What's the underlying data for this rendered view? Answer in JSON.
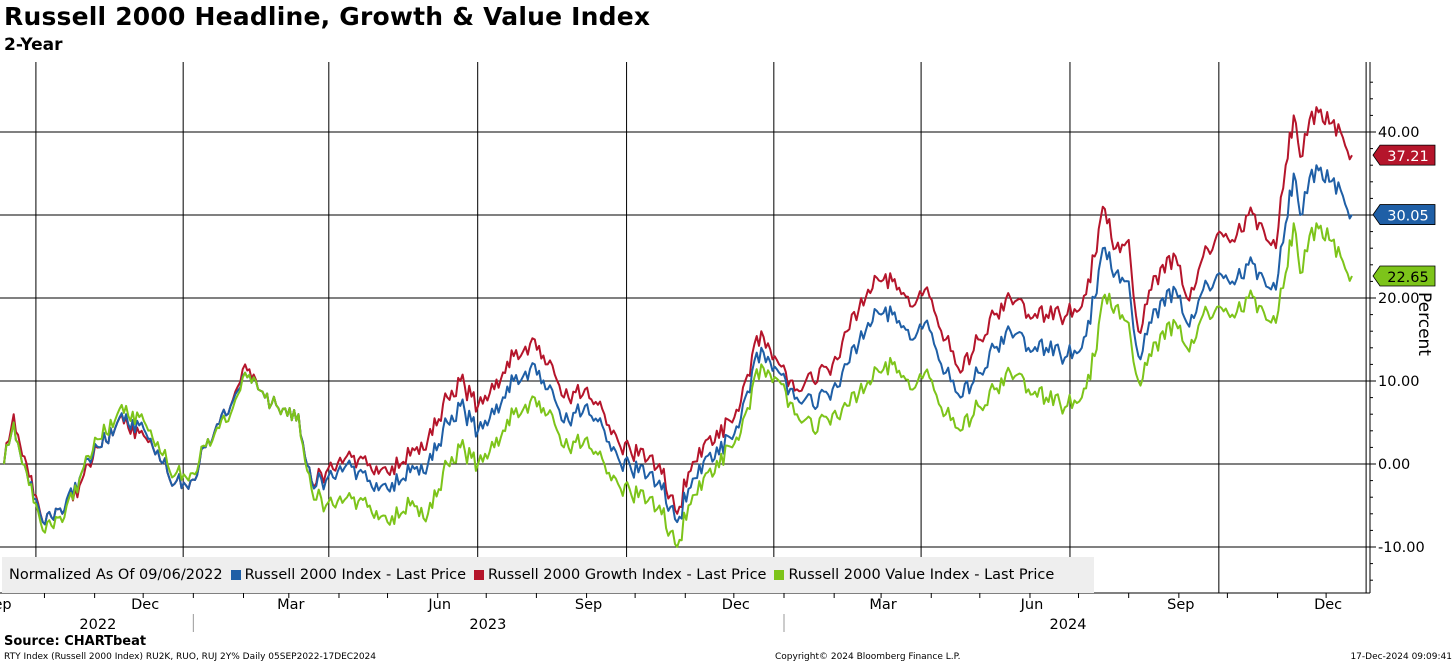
{
  "header": {
    "title": "Russell 2000 Headline, Growth & Value Index",
    "subtitle": "2-Year"
  },
  "legend": {
    "note": "Normalized As Of 09/06/2022"
  },
  "source": "Source: CHARTbeat",
  "footer": {
    "left": "RTY Index (Russell 2000 Index) RU2K, RUO, RUJ 2Y%  Daily 05SEP2022-17DEC2024",
    "center": "Copyright© 2024 Bloomberg Finance L.P.",
    "right": "17-Dec-2024 09:09:41"
  },
  "chart_data": {
    "type": "line",
    "title": "Russell 2000 Headline, Growth & Value Index",
    "subtitle": "2-Year",
    "ylabel": "Percent",
    "ylim": [
      -15,
      47
    ],
    "yticks": [
      -10,
      0,
      10,
      20,
      30,
      40
    ],
    "ytick_labels": [
      "-10.00",
      "0.00",
      "10.00",
      "20.00",
      "30.00",
      "40.00"
    ],
    "xlim": [
      "2022-09-06",
      "2024-12-17"
    ],
    "month_ticks": [
      {
        "date": "2022-09-01",
        "label": "Sep"
      },
      {
        "date": "2022-12-01",
        "label": "Dec"
      },
      {
        "date": "2023-03-01",
        "label": "Mar"
      },
      {
        "date": "2023-06-01",
        "label": "Jun"
      },
      {
        "date": "2023-09-01",
        "label": "Sep"
      },
      {
        "date": "2023-12-01",
        "label": "Dec"
      },
      {
        "date": "2024-03-01",
        "label": "Mar"
      },
      {
        "date": "2024-06-01",
        "label": "Jun"
      },
      {
        "date": "2024-09-01",
        "label": "Sep"
      },
      {
        "date": "2024-12-01",
        "label": "Dec"
      }
    ],
    "year_labels": [
      {
        "label": "2022",
        "from": "2022-09-06",
        "to": "2022-12-31"
      },
      {
        "label": "2023",
        "from": "2023-01-01",
        "to": "2023-12-31"
      },
      {
        "label": "2024",
        "from": "2024-01-01",
        "to": "2024-12-17"
      }
    ],
    "grid": true,
    "legend_position": "bottom-left",
    "series": [
      {
        "name": "Russell 2000 Growth Index - Last Price",
        "color": "#b5152b",
        "last_value_label": "37.21",
        "points": [
          [
            "2022-09-06",
            0
          ],
          [
            "2022-09-12",
            6
          ],
          [
            "2022-09-20",
            0
          ],
          [
            "2022-09-30",
            -7
          ],
          [
            "2022-10-12",
            -6
          ],
          [
            "2022-10-24",
            -2
          ],
          [
            "2022-11-04",
            2
          ],
          [
            "2022-11-15",
            5
          ],
          [
            "2022-11-30",
            4
          ],
          [
            "2022-12-07",
            2
          ],
          [
            "2022-12-16",
            -1
          ],
          [
            "2022-12-29",
            -3
          ],
          [
            "2023-01-10",
            3
          ],
          [
            "2023-01-24",
            7
          ],
          [
            "2023-02-02",
            12
          ],
          [
            "2023-02-10",
            9
          ],
          [
            "2023-02-24",
            6
          ],
          [
            "2023-03-07",
            6
          ],
          [
            "2023-03-15",
            -2
          ],
          [
            "2023-03-24",
            -1
          ],
          [
            "2023-04-06",
            1
          ],
          [
            "2023-04-20",
            0
          ],
          [
            "2023-05-01",
            -1
          ],
          [
            "2023-05-15",
            1
          ],
          [
            "2023-05-26",
            3
          ],
          [
            "2023-06-07",
            8
          ],
          [
            "2023-06-15",
            10
          ],
          [
            "2023-06-26",
            7
          ],
          [
            "2023-07-06",
            9
          ],
          [
            "2023-07-18",
            13
          ],
          [
            "2023-07-31",
            15
          ],
          [
            "2023-08-08",
            12
          ],
          [
            "2023-08-18",
            8
          ],
          [
            "2023-08-31",
            9
          ],
          [
            "2023-09-12",
            6
          ],
          [
            "2023-09-22",
            2
          ],
          [
            "2023-10-03",
            1
          ],
          [
            "2023-10-16",
            0
          ],
          [
            "2023-10-27",
            -6
          ],
          [
            "2023-11-03",
            -1
          ],
          [
            "2023-11-15",
            3
          ],
          [
            "2023-11-30",
            5
          ],
          [
            "2023-12-08",
            10
          ],
          [
            "2023-12-18",
            16
          ],
          [
            "2023-12-29",
            12
          ],
          [
            "2024-01-09",
            9
          ],
          [
            "2024-01-19",
            10
          ],
          [
            "2024-01-31",
            12
          ],
          [
            "2024-02-09",
            16
          ],
          [
            "2024-02-22",
            21
          ],
          [
            "2024-03-01",
            22
          ],
          [
            "2024-03-08",
            22
          ],
          [
            "2024-03-19",
            19
          ],
          [
            "2024-03-28",
            21
          ],
          [
            "2024-04-10",
            15
          ],
          [
            "2024-04-19",
            11
          ],
          [
            "2024-04-30",
            15
          ],
          [
            "2024-05-10",
            18
          ],
          [
            "2024-05-20",
            20
          ],
          [
            "2024-05-31",
            18
          ],
          [
            "2024-06-11",
            18
          ],
          [
            "2024-06-24",
            18
          ],
          [
            "2024-07-03",
            19
          ],
          [
            "2024-07-11",
            25
          ],
          [
            "2024-07-16",
            31
          ],
          [
            "2024-07-24",
            26
          ],
          [
            "2024-08-01",
            27
          ],
          [
            "2024-08-07",
            16
          ],
          [
            "2024-08-15",
            21
          ],
          [
            "2024-08-22",
            24
          ],
          [
            "2024-08-30",
            25
          ],
          [
            "2024-09-06",
            20
          ],
          [
            "2024-09-16",
            25
          ],
          [
            "2024-09-26",
            28
          ],
          [
            "2024-10-04",
            27
          ],
          [
            "2024-10-14",
            30
          ],
          [
            "2024-10-22",
            29
          ],
          [
            "2024-10-31",
            26
          ],
          [
            "2024-11-06",
            36
          ],
          [
            "2024-11-11",
            42
          ],
          [
            "2024-11-15",
            37
          ],
          [
            "2024-11-25",
            43
          ],
          [
            "2024-12-03",
            41
          ],
          [
            "2024-12-10",
            40
          ],
          [
            "2024-12-17",
            37.21
          ]
        ]
      },
      {
        "name": "Russell 2000 Index - Last Price",
        "color": "#1f5fa6",
        "last_value_label": "30.05",
        "points": [
          [
            "2022-09-06",
            0
          ],
          [
            "2022-09-12",
            5
          ],
          [
            "2022-09-20",
            -1
          ],
          [
            "2022-09-30",
            -7
          ],
          [
            "2022-10-12",
            -6
          ],
          [
            "2022-10-24",
            -1
          ],
          [
            "2022-11-04",
            2
          ],
          [
            "2022-11-15",
            5
          ],
          [
            "2022-11-30",
            5
          ],
          [
            "2022-12-07",
            2
          ],
          [
            "2022-12-16",
            -1
          ],
          [
            "2022-12-29",
            -3
          ],
          [
            "2023-01-10",
            3
          ],
          [
            "2023-01-24",
            7
          ],
          [
            "2023-02-02",
            11
          ],
          [
            "2023-02-10",
            9
          ],
          [
            "2023-02-24",
            6
          ],
          [
            "2023-03-07",
            6
          ],
          [
            "2023-03-15",
            -2
          ],
          [
            "2023-03-24",
            -2
          ],
          [
            "2023-04-06",
            0
          ],
          [
            "2023-04-20",
            -2
          ],
          [
            "2023-05-01",
            -3
          ],
          [
            "2023-05-15",
            -1
          ],
          [
            "2023-05-26",
            0
          ],
          [
            "2023-06-07",
            5
          ],
          [
            "2023-06-15",
            7
          ],
          [
            "2023-06-26",
            4
          ],
          [
            "2023-07-06",
            6
          ],
          [
            "2023-07-18",
            10
          ],
          [
            "2023-07-31",
            12
          ],
          [
            "2023-08-08",
            9
          ],
          [
            "2023-08-18",
            5
          ],
          [
            "2023-08-31",
            7
          ],
          [
            "2023-09-12",
            4
          ],
          [
            "2023-09-22",
            0
          ],
          [
            "2023-10-03",
            -1
          ],
          [
            "2023-10-16",
            -2
          ],
          [
            "2023-10-27",
            -7
          ],
          [
            "2023-11-03",
            -3
          ],
          [
            "2023-11-15",
            1
          ],
          [
            "2023-11-30",
            3
          ],
          [
            "2023-12-08",
            8
          ],
          [
            "2023-12-18",
            14
          ],
          [
            "2023-12-29",
            11
          ],
          [
            "2024-01-09",
            8
          ],
          [
            "2024-01-19",
            7
          ],
          [
            "2024-01-31",
            9
          ],
          [
            "2024-02-09",
            12
          ],
          [
            "2024-02-22",
            17
          ],
          [
            "2024-03-01",
            18
          ],
          [
            "2024-03-08",
            18
          ],
          [
            "2024-03-19",
            15
          ],
          [
            "2024-03-28",
            17
          ],
          [
            "2024-04-10",
            11
          ],
          [
            "2024-04-19",
            8
          ],
          [
            "2024-04-30",
            11
          ],
          [
            "2024-05-10",
            14
          ],
          [
            "2024-05-20",
            16
          ],
          [
            "2024-05-31",
            14
          ],
          [
            "2024-06-11",
            14
          ],
          [
            "2024-06-24",
            13
          ],
          [
            "2024-07-03",
            14
          ],
          [
            "2024-07-11",
            20
          ],
          [
            "2024-07-16",
            26
          ],
          [
            "2024-07-24",
            23
          ],
          [
            "2024-08-01",
            22
          ],
          [
            "2024-08-07",
            13
          ],
          [
            "2024-08-15",
            17
          ],
          [
            "2024-08-22",
            20
          ],
          [
            "2024-08-30",
            21
          ],
          [
            "2024-09-06",
            17
          ],
          [
            "2024-09-16",
            21
          ],
          [
            "2024-09-26",
            23
          ],
          [
            "2024-10-04",
            22
          ],
          [
            "2024-10-14",
            24
          ],
          [
            "2024-10-22",
            23
          ],
          [
            "2024-10-31",
            21
          ],
          [
            "2024-11-06",
            29
          ],
          [
            "2024-11-11",
            35
          ],
          [
            "2024-11-15",
            30
          ],
          [
            "2024-11-25",
            36
          ],
          [
            "2024-12-03",
            34
          ],
          [
            "2024-12-10",
            33
          ],
          [
            "2024-12-17",
            30.05
          ]
        ]
      },
      {
        "name": "Russell 2000 Value Index - Last Price",
        "color": "#7dc41a",
        "last_value_label": "22.65",
        "points": [
          [
            "2022-09-06",
            0
          ],
          [
            "2022-09-12",
            5
          ],
          [
            "2022-09-20",
            -1
          ],
          [
            "2022-09-30",
            -8
          ],
          [
            "2022-10-12",
            -7
          ],
          [
            "2022-10-24",
            -1
          ],
          [
            "2022-11-04",
            3
          ],
          [
            "2022-11-15",
            6
          ],
          [
            "2022-11-30",
            6
          ],
          [
            "2022-12-07",
            3
          ],
          [
            "2022-12-16",
            0
          ],
          [
            "2022-12-29",
            -2
          ],
          [
            "2023-01-10",
            3
          ],
          [
            "2023-01-24",
            6
          ],
          [
            "2023-02-02",
            11
          ],
          [
            "2023-02-10",
            9
          ],
          [
            "2023-02-24",
            6
          ],
          [
            "2023-03-07",
            6
          ],
          [
            "2023-03-15",
            -3
          ],
          [
            "2023-03-24",
            -5
          ],
          [
            "2023-04-06",
            -4
          ],
          [
            "2023-04-20",
            -5
          ],
          [
            "2023-05-01",
            -7
          ],
          [
            "2023-05-15",
            -5
          ],
          [
            "2023-05-26",
            -6
          ],
          [
            "2023-06-07",
            0
          ],
          [
            "2023-06-15",
            2
          ],
          [
            "2023-06-26",
            0
          ],
          [
            "2023-07-06",
            2
          ],
          [
            "2023-07-18",
            6
          ],
          [
            "2023-07-31",
            8
          ],
          [
            "2023-08-08",
            6
          ],
          [
            "2023-08-18",
            2
          ],
          [
            "2023-08-31",
            3
          ],
          [
            "2023-09-12",
            0
          ],
          [
            "2023-09-22",
            -3
          ],
          [
            "2023-10-03",
            -4
          ],
          [
            "2023-10-16",
            -5
          ],
          [
            "2023-10-27",
            -10
          ],
          [
            "2023-11-03",
            -5
          ],
          [
            "2023-11-15",
            -1
          ],
          [
            "2023-11-30",
            2
          ],
          [
            "2023-12-08",
            6
          ],
          [
            "2023-12-18",
            12
          ],
          [
            "2023-12-29",
            10
          ],
          [
            "2024-01-09",
            6
          ],
          [
            "2024-01-19",
            4
          ],
          [
            "2024-01-31",
            6
          ],
          [
            "2024-02-09",
            7
          ],
          [
            "2024-02-22",
            10
          ],
          [
            "2024-03-01",
            11
          ],
          [
            "2024-03-08",
            12
          ],
          [
            "2024-03-19",
            9
          ],
          [
            "2024-03-28",
            11
          ],
          [
            "2024-04-10",
            6
          ],
          [
            "2024-04-19",
            4
          ],
          [
            "2024-04-30",
            7
          ],
          [
            "2024-05-10",
            9
          ],
          [
            "2024-05-20",
            11
          ],
          [
            "2024-05-31",
            9
          ],
          [
            "2024-06-11",
            8
          ],
          [
            "2024-06-24",
            7
          ],
          [
            "2024-07-03",
            8
          ],
          [
            "2024-07-11",
            13
          ],
          [
            "2024-07-16",
            20
          ],
          [
            "2024-07-24",
            19
          ],
          [
            "2024-08-01",
            17
          ],
          [
            "2024-08-07",
            10
          ],
          [
            "2024-08-15",
            13
          ],
          [
            "2024-08-22",
            16
          ],
          [
            "2024-08-30",
            17
          ],
          [
            "2024-09-06",
            14
          ],
          [
            "2024-09-16",
            18
          ],
          [
            "2024-09-26",
            19
          ],
          [
            "2024-10-04",
            18
          ],
          [
            "2024-10-14",
            20
          ],
          [
            "2024-10-22",
            19
          ],
          [
            "2024-10-31",
            17
          ],
          [
            "2024-11-06",
            23
          ],
          [
            "2024-11-11",
            29
          ],
          [
            "2024-11-15",
            23
          ],
          [
            "2024-11-25",
            29
          ],
          [
            "2024-12-03",
            27
          ],
          [
            "2024-12-10",
            25
          ],
          [
            "2024-12-17",
            22.65
          ]
        ]
      }
    ]
  }
}
